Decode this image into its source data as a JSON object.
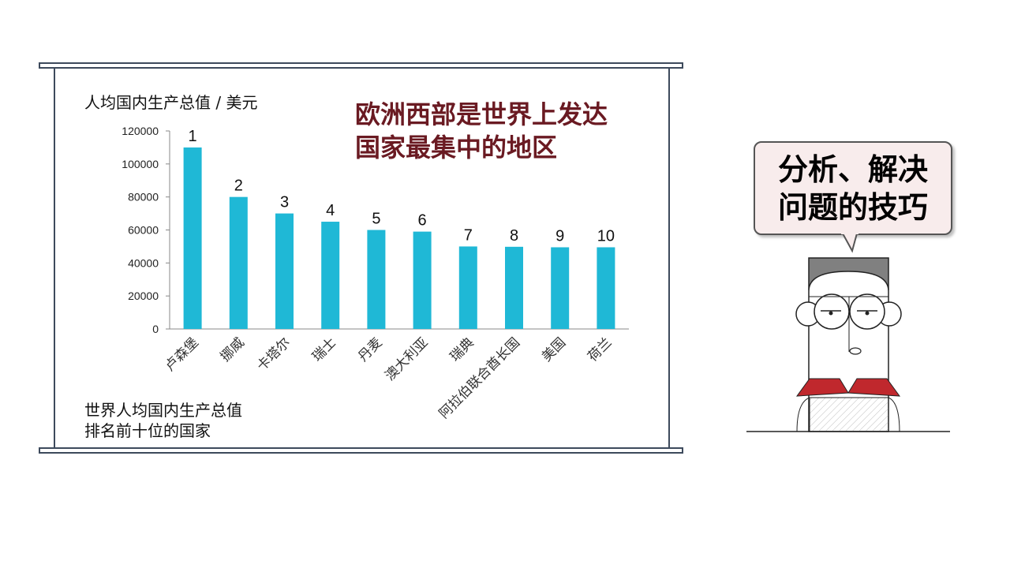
{
  "slide": {
    "unit_label": "人均国内生产总值 / 美元",
    "headline": [
      "欧洲西部是世界上发达",
      "国家最集中的地区"
    ],
    "caption": [
      "世界人均国内生产总值",
      "排名前十位的国家"
    ],
    "bubble": [
      "分析、解决",
      "问题的技巧"
    ]
  },
  "chart_data": {
    "type": "bar",
    "title": "",
    "ylabel": "人均国内生产总值 / 美元",
    "xlabel": "",
    "categories": [
      "卢森堡",
      "挪威",
      "卡塔尔",
      "瑞士",
      "丹麦",
      "澳大利亚",
      "瑞典",
      "阿拉伯联合酋长国",
      "美国",
      "荷兰"
    ],
    "values": [
      110000,
      80000,
      70000,
      65000,
      60000,
      59000,
      50000,
      49800,
      49500,
      49500
    ],
    "data_labels": [
      "1",
      "2",
      "3",
      "4",
      "5",
      "6",
      "7",
      "8",
      "9",
      "10"
    ],
    "ylim": [
      0,
      120000
    ],
    "yticks": [
      0,
      20000,
      40000,
      60000,
      80000,
      100000,
      120000
    ],
    "bar_color": "#1fb8d6",
    "grid": false
  },
  "colors": {
    "headline": "#6a1a22",
    "bar": "#1fb8d6",
    "frame": "#3d4a5c",
    "bubble_bg": "#f8ecec",
    "collar": "#c0282d"
  }
}
